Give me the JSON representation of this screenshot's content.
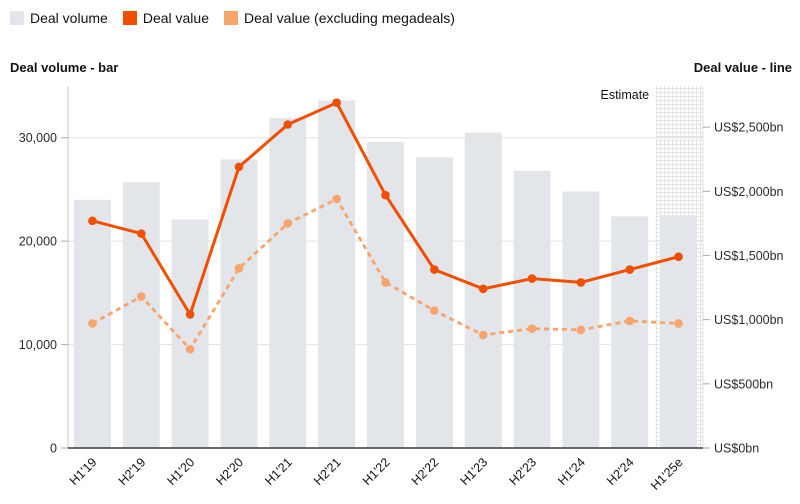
{
  "legend": {
    "items": [
      {
        "label": "Deal volume",
        "color": "#e2e5e9"
      },
      {
        "label": "Deal value",
        "color": "#f04f00"
      },
      {
        "label": "Deal value (excluding megadeals)",
        "color": "#f8a46c"
      }
    ]
  },
  "chart_data": {
    "type": "combo-bar-line",
    "title": "",
    "categories": [
      "H1'19",
      "H2'19",
      "H1'20",
      "H2'20",
      "H1'21",
      "H2'21",
      "H1'22",
      "H2'22",
      "H1'23",
      "H2'23",
      "H1'24",
      "H2'24",
      "H1'25e"
    ],
    "series": [
      {
        "name": "Deal volume",
        "type": "bar",
        "axis": "left",
        "color": "#e2e5e9",
        "values": [
          24000,
          25700,
          22100,
          27900,
          31900,
          33600,
          29600,
          28100,
          30500,
          26800,
          24800,
          22400,
          22500
        ]
      },
      {
        "name": "Deal value",
        "type": "line",
        "style": "solid",
        "axis": "right",
        "color": "#f04f00",
        "values": [
          1770,
          1670,
          1040,
          2190,
          2520,
          2690,
          1970,
          1390,
          1240,
          1320,
          1290,
          1390,
          1490
        ]
      },
      {
        "name": "Deal value (excluding megadeals)",
        "type": "line",
        "style": "dashed",
        "axis": "right",
        "color": "#f8a46c",
        "values": [
          970,
          1180,
          770,
          1400,
          1750,
          1940,
          1290,
          1070,
          880,
          930,
          920,
          990,
          970
        ]
      }
    ],
    "left_axis": {
      "title": "Deal volume - bar",
      "ticks": [
        0,
        10000,
        20000,
        30000
      ],
      "tick_labels": [
        "0",
        "10,000",
        "20,000",
        "30,000"
      ],
      "max": 35000
    },
    "right_axis": {
      "title": "Deal value - line",
      "ticks": [
        0,
        500,
        1000,
        1500,
        2000,
        2500
      ],
      "tick_labels": [
        "US$0bn",
        "US$500bn",
        "US$1,000bn",
        "US$1,500bn",
        "US$2,000bn",
        "US$2,500bn"
      ],
      "max": 2820
    },
    "estimate": {
      "label": "Estimate",
      "category": "H1'25e"
    },
    "grid": "horizontal-left-ticks-only",
    "legend_position": "top-left"
  },
  "colors": {
    "gridline": "#e1e1e1",
    "left_axis_line": "#c9c9c9",
    "right_axis_line": "#e0e0e0",
    "bottom_axis_line": "#3a3a3a",
    "tick_mark": "#ababab",
    "tick_text": "#2b2b2b",
    "hatch_line": "#e4e4e4"
  }
}
